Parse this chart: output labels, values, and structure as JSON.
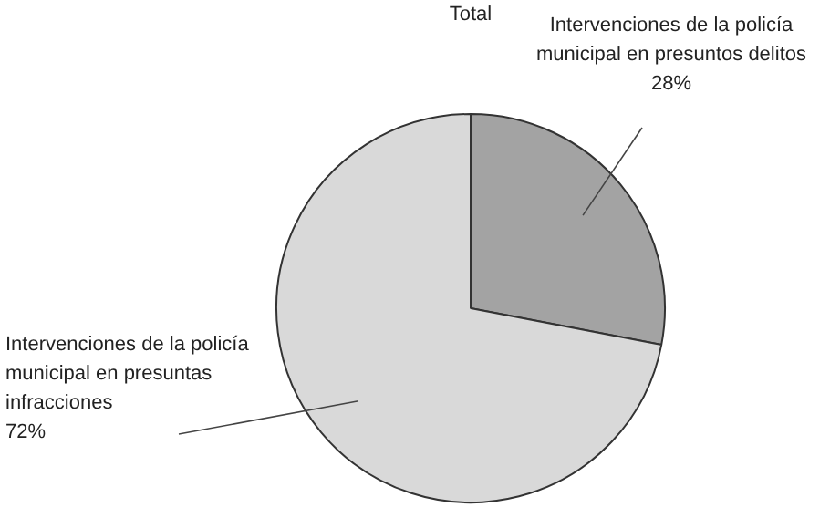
{
  "chart_data": {
    "type": "pie",
    "title": "Total",
    "categories": [
      "Intervenciones de la policía municipal en presuntos delitos",
      "Intervenciones de la policía municipal en presuntas infracciones"
    ],
    "values": [
      28,
      72
    ],
    "value_labels": [
      "28%",
      "72%"
    ],
    "colors": [
      "#a3a3a3",
      "#d9d9d9"
    ],
    "legend": false
  }
}
